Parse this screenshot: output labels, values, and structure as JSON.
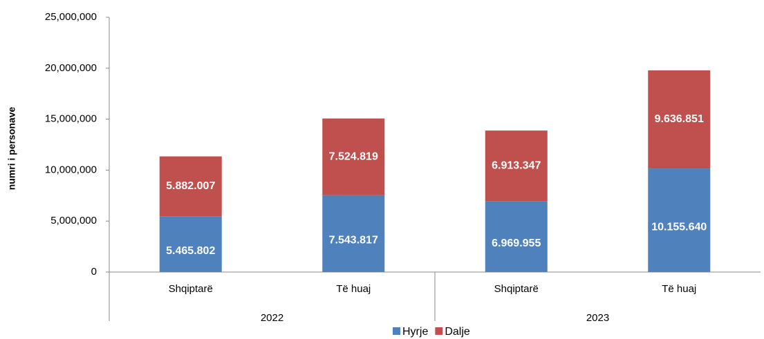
{
  "chart_data": {
    "type": "stacked_bar",
    "ylabel": "numri i personave",
    "categories": [
      "Shqiptarë",
      "Të huaj",
      "Shqiptarë",
      "Të huaj"
    ],
    "groups": [
      "2022",
      "2023"
    ],
    "series": [
      {
        "name": "Hyrje",
        "color": "#4f81bd",
        "values": [
          5465802,
          7543817,
          6969955,
          10155640
        ],
        "value_labels": [
          "5.465.802",
          "7.543.817",
          "6.969.955",
          "10.155.640"
        ]
      },
      {
        "name": "Dalje",
        "color": "#c0504d",
        "values": [
          5882007,
          7524819,
          6913347,
          9636851
        ],
        "value_labels": [
          "5.882.007",
          "7.524.819",
          "6.913.347",
          "9.636.851"
        ]
      }
    ],
    "ylim": [
      0,
      25000000
    ],
    "yticks": [
      0,
      {
        "value": 5000000,
        "label": "5,000,000"
      },
      {
        "value": 10000000,
        "label": "10,000,000"
      },
      {
        "value": 15000000,
        "label": "15,000,000"
      },
      {
        "value": 20000000,
        "label": "20,000,000"
      },
      {
        "value": 25000000,
        "label": "25,000,000"
      }
    ],
    "legend": "bottom"
  }
}
